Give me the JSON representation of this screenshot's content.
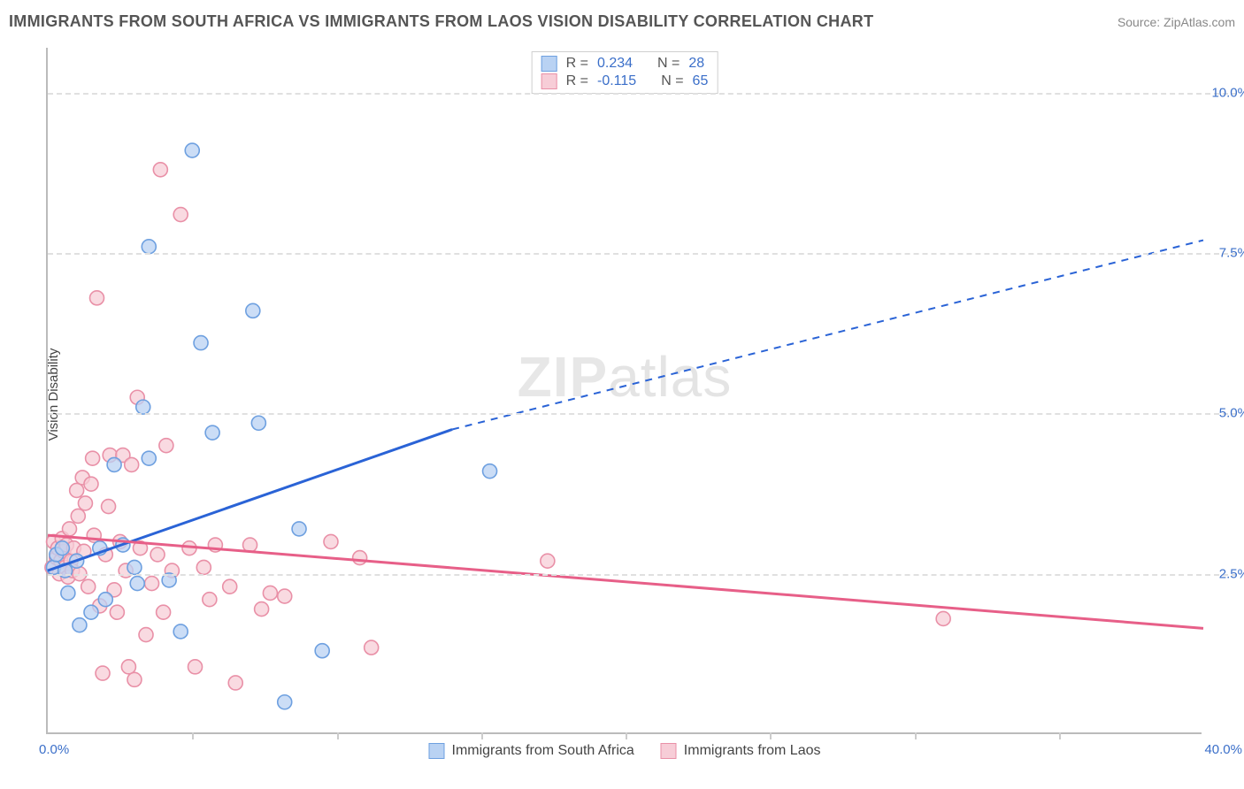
{
  "title": "IMMIGRANTS FROM SOUTH AFRICA VS IMMIGRANTS FROM LAOS VISION DISABILITY CORRELATION CHART",
  "source_label": "Source: ZipAtlas.com",
  "y_axis_label": "Vision Disability",
  "watermark": {
    "bold": "ZIP",
    "rest": "atlas"
  },
  "chart": {
    "type": "scatter",
    "xlim": [
      0,
      40
    ],
    "ylim": [
      0,
      10.7
    ],
    "x_tick_step": 5,
    "x_origin_label": "0.0%",
    "x_max_label": "40.0%",
    "y_ticks": [
      {
        "value": 2.5,
        "label": "2.5%"
      },
      {
        "value": 5.0,
        "label": "5.0%"
      },
      {
        "value": 7.5,
        "label": "7.5%"
      },
      {
        "value": 10.0,
        "label": "10.0%"
      }
    ],
    "grid_color": "#e0e0e0",
    "axis_color": "#bbbbbb",
    "background_color": "#ffffff",
    "marker_radius": 8,
    "marker_stroke_width": 1.6,
    "trend_line_width": 3,
    "series": [
      {
        "id": "south_africa",
        "label": "Immigrants from South Africa",
        "fill": "#b9d2f3",
        "stroke": "#6ea0e0",
        "trend_color": "#2a63d6",
        "R": "0.234",
        "N": "28",
        "trend": {
          "x1": 0,
          "y1": 2.55,
          "x2_solid": 14,
          "y2_solid": 4.75,
          "x2": 40,
          "y2": 7.7
        },
        "points": [
          [
            0.2,
            2.6
          ],
          [
            0.3,
            2.8
          ],
          [
            0.5,
            2.9
          ],
          [
            0.6,
            2.55
          ],
          [
            0.7,
            2.2
          ],
          [
            1.0,
            2.7
          ],
          [
            1.1,
            1.7
          ],
          [
            1.5,
            1.9
          ],
          [
            1.8,
            2.9
          ],
          [
            2.0,
            2.1
          ],
          [
            2.3,
            4.2
          ],
          [
            2.6,
            2.95
          ],
          [
            3.0,
            2.6
          ],
          [
            3.1,
            2.35
          ],
          [
            3.3,
            5.1
          ],
          [
            3.5,
            7.6
          ],
          [
            3.5,
            4.3
          ],
          [
            4.2,
            2.4
          ],
          [
            4.6,
            1.6
          ],
          [
            5.0,
            9.1
          ],
          [
            5.3,
            6.1
          ],
          [
            5.7,
            4.7
          ],
          [
            7.1,
            6.6
          ],
          [
            7.3,
            4.85
          ],
          [
            8.2,
            0.5
          ],
          [
            8.7,
            3.2
          ],
          [
            9.5,
            1.3
          ],
          [
            15.3,
            4.1
          ]
        ]
      },
      {
        "id": "laos",
        "label": "Immigrants from Laos",
        "fill": "#f7cdd7",
        "stroke": "#e990a7",
        "trend_color": "#e75f88",
        "R": "-0.115",
        "N": "65",
        "trend": {
          "x1": 0,
          "y1": 3.1,
          "x2_solid": 40,
          "y2_solid": 1.65,
          "x2": 40,
          "y2": 1.65
        },
        "points": [
          [
            0.15,
            2.6
          ],
          [
            0.2,
            3.0
          ],
          [
            0.3,
            2.75
          ],
          [
            0.35,
            2.9
          ],
          [
            0.4,
            2.5
          ],
          [
            0.45,
            2.7
          ],
          [
            0.5,
            3.05
          ],
          [
            0.55,
            2.85
          ],
          [
            0.6,
            2.6
          ],
          [
            0.65,
            2.95
          ],
          [
            0.7,
            2.45
          ],
          [
            0.75,
            3.2
          ],
          [
            0.8,
            2.7
          ],
          [
            0.85,
            2.55
          ],
          [
            0.9,
            2.9
          ],
          [
            1.0,
            3.8
          ],
          [
            1.05,
            3.4
          ],
          [
            1.1,
            2.5
          ],
          [
            1.2,
            4.0
          ],
          [
            1.3,
            3.6
          ],
          [
            1.4,
            2.3
          ],
          [
            1.5,
            3.9
          ],
          [
            1.55,
            4.3
          ],
          [
            1.6,
            3.1
          ],
          [
            1.7,
            6.8
          ],
          [
            1.8,
            2.0
          ],
          [
            1.9,
            0.95
          ],
          [
            2.0,
            2.8
          ],
          [
            2.1,
            3.55
          ],
          [
            2.15,
            4.35
          ],
          [
            2.3,
            2.25
          ],
          [
            2.4,
            1.9
          ],
          [
            2.5,
            3.0
          ],
          [
            2.6,
            4.35
          ],
          [
            2.7,
            2.55
          ],
          [
            2.8,
            1.05
          ],
          [
            2.9,
            4.2
          ],
          [
            3.0,
            0.85
          ],
          [
            3.1,
            5.25
          ],
          [
            3.2,
            2.9
          ],
          [
            3.4,
            1.55
          ],
          [
            3.6,
            2.35
          ],
          [
            3.8,
            2.8
          ],
          [
            3.9,
            8.8
          ],
          [
            4.0,
            1.9
          ],
          [
            4.1,
            4.5
          ],
          [
            4.3,
            2.55
          ],
          [
            4.6,
            8.1
          ],
          [
            4.9,
            2.9
          ],
          [
            5.1,
            1.05
          ],
          [
            5.4,
            2.6
          ],
          [
            5.6,
            2.1
          ],
          [
            5.8,
            2.95
          ],
          [
            6.3,
            2.3
          ],
          [
            6.5,
            0.8
          ],
          [
            7.0,
            2.95
          ],
          [
            7.4,
            1.95
          ],
          [
            7.7,
            2.2
          ],
          [
            8.2,
            2.15
          ],
          [
            9.8,
            3.0
          ],
          [
            10.8,
            2.75
          ],
          [
            11.2,
            1.35
          ],
          [
            17.3,
            2.7
          ],
          [
            31.0,
            1.8
          ],
          [
            1.25,
            2.85
          ]
        ]
      }
    ]
  },
  "legend_top": {
    "r_label": "R =",
    "n_label": "N ="
  }
}
